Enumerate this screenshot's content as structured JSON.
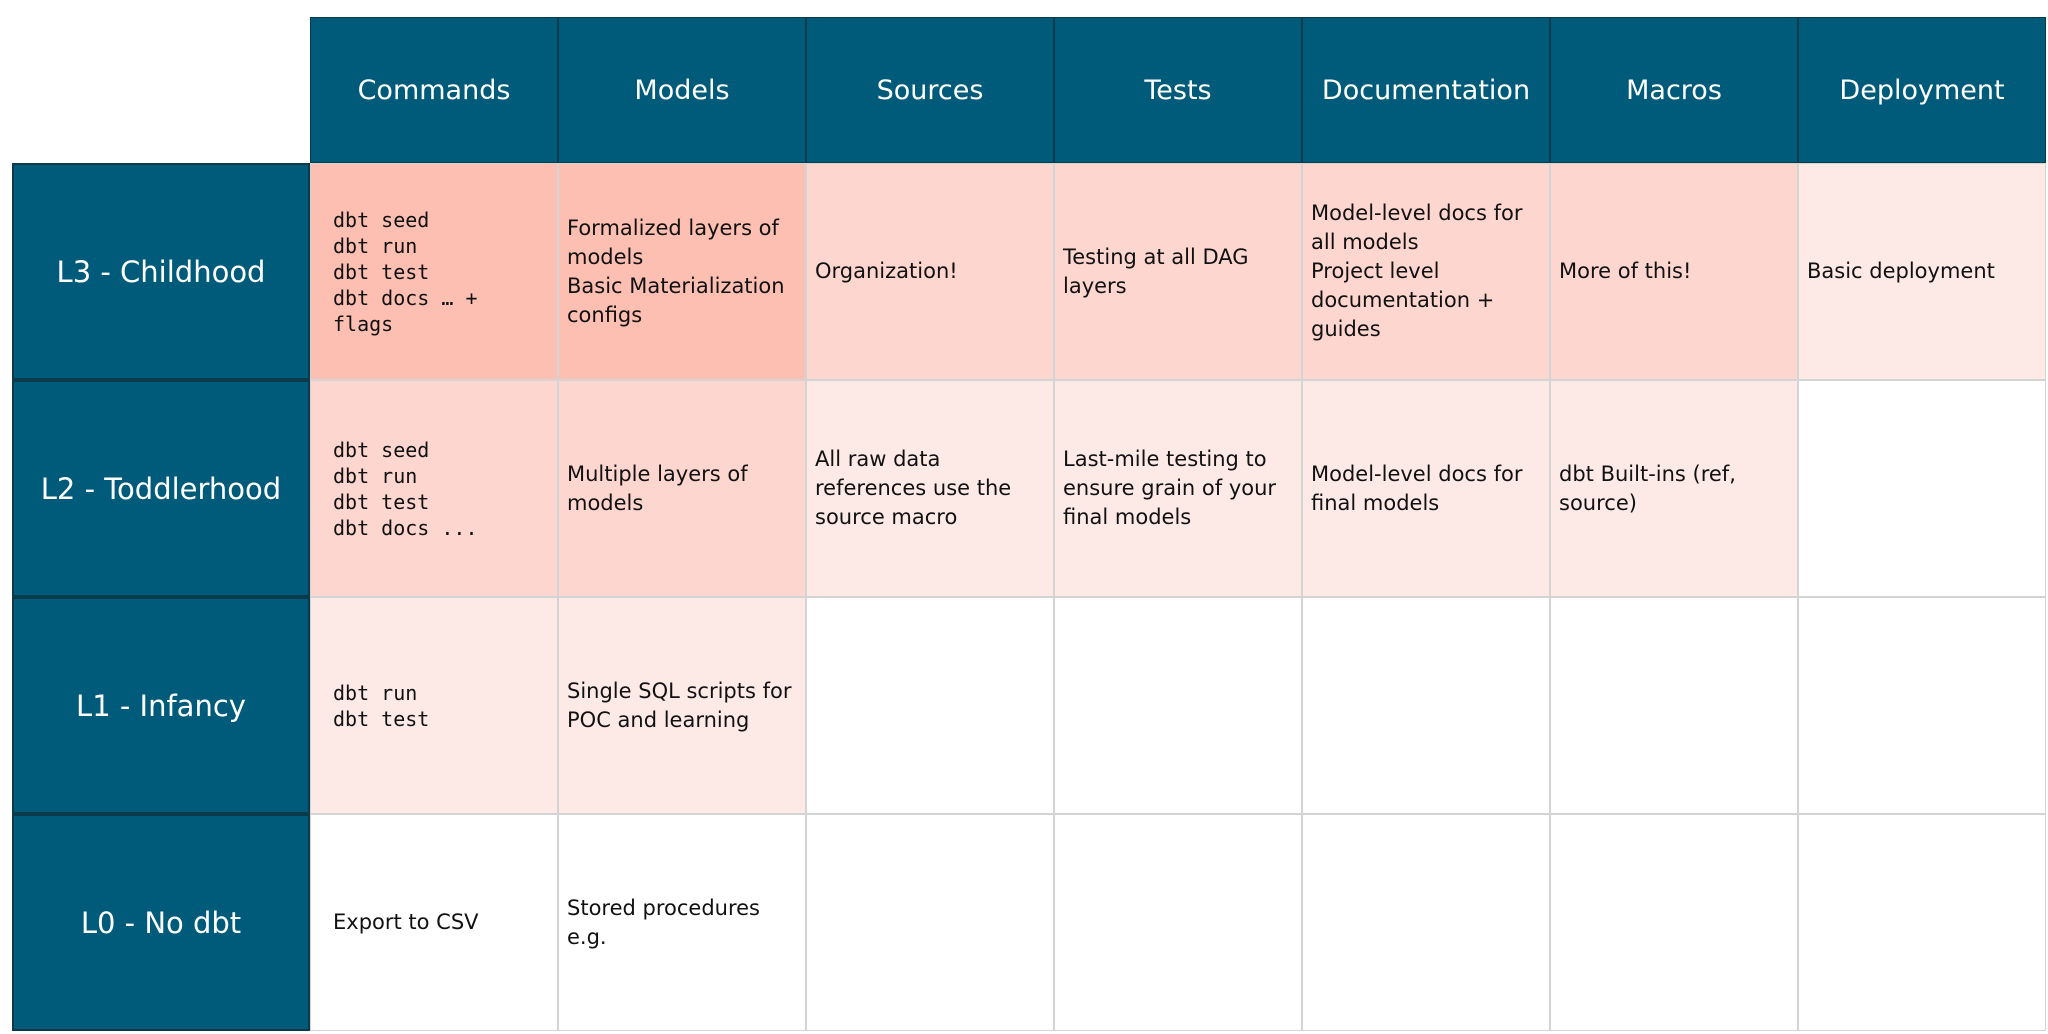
{
  "table": {
    "columns": [
      "Commands",
      "Models",
      "Sources",
      "Tests",
      "Documentation",
      "Macros",
      "Deployment"
    ],
    "rows": [
      {
        "label": "L3 - Childhood",
        "cells": [
          {
            "lines": [
              "dbt seed",
              "dbt run",
              "dbt test",
              "dbt docs … + flags"
            ],
            "code": true,
            "color": "#fdbfb1"
          },
          {
            "lines": [
              "Formalized layers of models",
              "Basic Materialization configs"
            ],
            "color": "#fdbfb1"
          },
          {
            "lines": [
              "Organization!"
            ],
            "color": "#fdd6cf"
          },
          {
            "lines": [
              "Testing at all DAG layers"
            ],
            "color": "#fdd6cf"
          },
          {
            "lines": [
              "Model-level docs for all models",
              "Project level documentation + guides"
            ],
            "color": "#fdd6cf"
          },
          {
            "lines": [
              "More of this!"
            ],
            "color": "#fdd6cf"
          },
          {
            "lines": [
              "Basic deployment"
            ],
            "color": "#fdeae7"
          }
        ]
      },
      {
        "label": "L2 - Toddlerhood",
        "cells": [
          {
            "lines": [
              "dbt seed",
              "dbt run",
              "dbt test",
              "dbt docs ..."
            ],
            "code": true,
            "color": "#fdd6cf"
          },
          {
            "lines": [
              "Multiple layers of models"
            ],
            "color": "#fdd6cf"
          },
          {
            "lines": [
              "All raw data references use the source macro"
            ],
            "color": "#fdeae7"
          },
          {
            "lines": [
              "Last-mile testing to ensure grain of your final models"
            ],
            "color": "#fdeae7"
          },
          {
            "lines": [
              "Model-level docs for final models"
            ],
            "color": "#fdeae7"
          },
          {
            "lines": [
              "dbt Built-ins (ref, source)"
            ],
            "color": "#fdeae7"
          },
          {
            "color": "#ffffff"
          }
        ]
      },
      {
        "label": "L1 - Infancy",
        "cells": [
          {
            "lines": [
              "dbt run",
              "dbt test"
            ],
            "code": true,
            "color": "#fdeae7"
          },
          {
            "lines": [
              "Single SQL scripts for POC and learning"
            ],
            "color": "#fdeae7"
          },
          {
            "color": "#ffffff"
          },
          {
            "color": "#ffffff"
          },
          {
            "color": "#ffffff"
          },
          {
            "color": "#ffffff"
          },
          {
            "color": "#ffffff"
          }
        ]
      },
      {
        "label": "L0 - No dbt",
        "cells": [
          {
            "lines": [
              "Export to CSV"
            ],
            "color": "#ffffff"
          },
          {
            "lines": [
              "Stored procedures e.g."
            ],
            "color": "#ffffff"
          },
          {
            "color": "#ffffff"
          },
          {
            "color": "#ffffff"
          },
          {
            "color": "#ffffff"
          },
          {
            "color": "#ffffff"
          },
          {
            "color": "#ffffff"
          }
        ]
      }
    ]
  }
}
